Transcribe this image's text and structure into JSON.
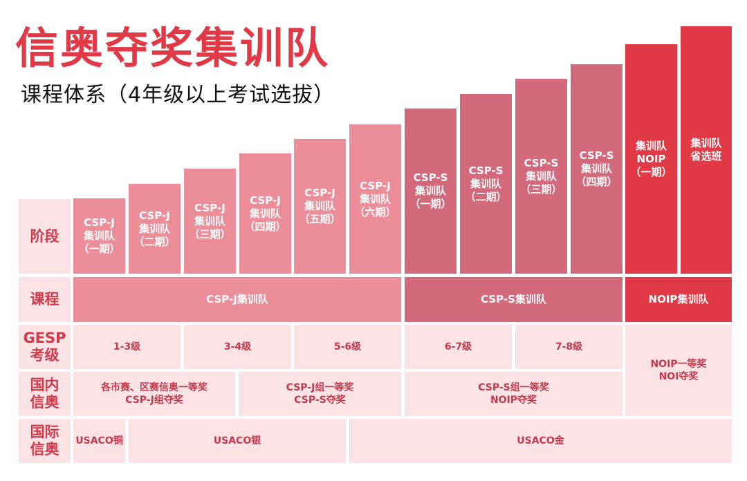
{
  "title": "信奥夺奖集训队",
  "subtitle": "课程体系（4年级以上考试选拔）",
  "row_labels": {
    "stage": "阶段",
    "course": "课程",
    "gesp": "GESP\n考级",
    "domestic": "国内\n信奥",
    "international": "国际\n信奥"
  },
  "stages": [
    {
      "label": "CSP-J\n集训队\n（一期）",
      "color": "#ec8e9a"
    },
    {
      "label": "CSP-J\n集训队\n（二期）",
      "color": "#ec8e9a"
    },
    {
      "label": "CSP-J\n集训队\n（三期）",
      "color": "#ec8e9a"
    },
    {
      "label": "CSP-J\n集训队\n（四期）",
      "color": "#ec8e9a"
    },
    {
      "label": "CSP-J\n集训队\n（五期）",
      "color": "#ec8e9a"
    },
    {
      "label": "CSP-J\n集训队\n（六期）",
      "color": "#ec8e9a"
    },
    {
      "label": "CSP-S\n集训队\n（一期）",
      "color": "#d36a7b"
    },
    {
      "label": "CSP-S\n集训队\n（二期）",
      "color": "#d36a7b"
    },
    {
      "label": "CSP-S\n集训队\n（三期）",
      "color": "#d36a7b"
    },
    {
      "label": "CSP-S\n集训队\n（四期）",
      "color": "#d36a7b"
    },
    {
      "label": "集训队\nNOIP\n（一期）",
      "color": "#e23947"
    },
    {
      "label": "集训队\n省选班",
      "color": "#e23947"
    }
  ],
  "courses": [
    "CSP-J集训队",
    "CSP-S集训队",
    "NOIP集训队"
  ],
  "gesp_levels": [
    "1-3级",
    "3-4级",
    "5-6级",
    "6-7级",
    "7-8级"
  ],
  "domestic_awards": [
    "各市赛、区赛信奥一等奖\nCSP-J组夺奖",
    "CSP-J组一等奖\nCSP-S夺奖",
    "CSP-S组一等奖\nNOIP夺奖"
  ],
  "noip_awards": "NOIP一等奖\nNOI夺奖",
  "usaco": [
    "USACO铜",
    "USACO银",
    "USACO金"
  ]
}
